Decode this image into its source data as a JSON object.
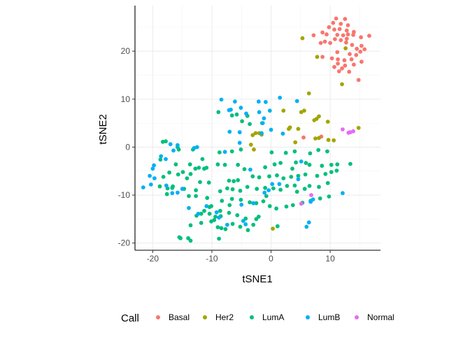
{
  "chart_data": {
    "type": "scatter",
    "xlabel": "tSNE1",
    "ylabel": "tSNE2",
    "xlim": [
      -23,
      18.5
    ],
    "ylim": [
      -21.5,
      29.5
    ],
    "x_ticks": [
      -20,
      -10,
      0,
      10
    ],
    "y_ticks": [
      -20,
      -10,
      0,
      10,
      20
    ],
    "grid": true,
    "legend": {
      "title": "Call",
      "position": "bottom"
    },
    "series": [
      {
        "name": "Basal",
        "color": "#F8766D",
        "points": [
          [
            11.0,
            26.8
          ],
          [
            12.5,
            26.7
          ],
          [
            10.5,
            25.9
          ],
          [
            11.8,
            25.7
          ],
          [
            13.0,
            25.4
          ],
          [
            9.8,
            25.0
          ],
          [
            10.7,
            24.5
          ],
          [
            11.6,
            24.6
          ],
          [
            12.8,
            24.3
          ],
          [
            14.0,
            24.0
          ],
          [
            8.7,
            23.9
          ],
          [
            9.4,
            23.5
          ],
          [
            11.2,
            23.4
          ],
          [
            12.2,
            23.3
          ],
          [
            13.0,
            23.5
          ],
          [
            13.9,
            23.4
          ],
          [
            15.2,
            22.9
          ],
          [
            16.6,
            23.2
          ],
          [
            7.2,
            23.3
          ],
          [
            10.8,
            22.5
          ],
          [
            11.8,
            22.3
          ],
          [
            12.8,
            22.6
          ],
          [
            9.1,
            22.0
          ],
          [
            8.4,
            21.7
          ],
          [
            10.0,
            21.7
          ],
          [
            12.7,
            21.8
          ],
          [
            13.7,
            21.3
          ],
          [
            15.3,
            21.1
          ],
          [
            15.8,
            20.4
          ],
          [
            14.5,
            20.5
          ],
          [
            15.1,
            19.9
          ],
          [
            11.2,
            19.8
          ],
          [
            13.3,
            19.4
          ],
          [
            14.4,
            19.2
          ],
          [
            8.7,
            18.8
          ],
          [
            10.3,
            18.5
          ],
          [
            11.3,
            18.3
          ],
          [
            12.4,
            18.1
          ],
          [
            13.6,
            18.3
          ],
          [
            15.3,
            17.8
          ],
          [
            11.3,
            17.4
          ],
          [
            12.5,
            17.0
          ],
          [
            14.0,
            17.2
          ],
          [
            10.7,
            16.7
          ],
          [
            12.0,
            16.4
          ],
          [
            11.5,
            15.8
          ],
          [
            13.2,
            15.7
          ],
          [
            14.8,
            14.0
          ],
          [
            5.5,
            2.0
          ],
          [
            8.5,
            2.2
          ]
        ]
      },
      {
        "name": "Her2",
        "color": "#A3A500",
        "points": [
          [
            5.3,
            22.7
          ],
          [
            12.6,
            20.6
          ],
          [
            7.8,
            18.8
          ],
          [
            12.0,
            13.1
          ],
          [
            6.4,
            11.2
          ],
          [
            5.1,
            7.3
          ],
          [
            2.1,
            7.6
          ],
          [
            5.6,
            7.6
          ],
          [
            8.1,
            6.4
          ],
          [
            7.7,
            5.9
          ],
          [
            7.3,
            5.6
          ],
          [
            9.6,
            5.3
          ],
          [
            3.0,
            3.8
          ],
          [
            3.2,
            4.1
          ],
          [
            4.6,
            3.8
          ],
          [
            -3.1,
            2.5
          ],
          [
            -2.0,
            2.9
          ],
          [
            -1.6,
            2.6
          ],
          [
            -2.6,
            2.9
          ],
          [
            4.1,
            1.0
          ],
          [
            7.5,
            1.8
          ],
          [
            8.1,
            1.9
          ],
          [
            9.7,
            1.5
          ],
          [
            10.6,
            1.4
          ],
          [
            14.8,
            4.0
          ],
          [
            -3.4,
            0.5
          ],
          [
            -2.9,
            -0.5
          ],
          [
            0.3,
            -17.0
          ]
        ]
      },
      {
        "name": "LumA",
        "color": "#00BF7D",
        "points": [
          [
            -18.3,
            1.1
          ],
          [
            -17.8,
            1.2
          ],
          [
            -15.8,
            0.0
          ],
          [
            -15.6,
            -0.5
          ],
          [
            -13.2,
            -0.5
          ],
          [
            -18.7,
            -2.6
          ],
          [
            -16.1,
            -3.6
          ],
          [
            -13.7,
            -3.6
          ],
          [
            -12.2,
            -4.3
          ],
          [
            -12.8,
            -4.5
          ],
          [
            -17.2,
            -5.3
          ],
          [
            -15.7,
            -5.7
          ],
          [
            -14.9,
            -5.2
          ],
          [
            -13.6,
            -5.6
          ],
          [
            -11.3,
            -4.5
          ],
          [
            -10.9,
            -4.3
          ],
          [
            -18.2,
            -6.2
          ],
          [
            -14.2,
            -6.5
          ],
          [
            -12.0,
            -7.3
          ],
          [
            -18.8,
            -8.2
          ],
          [
            -17.5,
            -8.6
          ],
          [
            -16.7,
            -8.5
          ],
          [
            -14.7,
            -8.7
          ],
          [
            -12.7,
            -9.0
          ],
          [
            -17.6,
            -9.8
          ],
          [
            -13.9,
            -10.2
          ],
          [
            -12.7,
            -10.2
          ],
          [
            -10.8,
            -10.6
          ],
          [
            -10.1,
            -12.3
          ],
          [
            -11.3,
            -13.3
          ],
          [
            -10.4,
            -13.9
          ],
          [
            -11.8,
            -13.9
          ],
          [
            -12.6,
            -14.3
          ],
          [
            -9.4,
            -14.5
          ],
          [
            -8.5,
            -14.4
          ],
          [
            -9.6,
            -15.2
          ],
          [
            -10.1,
            -15.5
          ],
          [
            -11.8,
            -15.8
          ],
          [
            -13.6,
            -16.3
          ],
          [
            -9.0,
            -16.7
          ],
          [
            -8.4,
            -16.9
          ],
          [
            -15.5,
            -18.8
          ],
          [
            -15.3,
            -19.0
          ],
          [
            -14.0,
            -19.0
          ],
          [
            -13.6,
            -19.5
          ],
          [
            -8.8,
            -19.1
          ],
          [
            -7.7,
            -17.1
          ],
          [
            -6.5,
            -16.0
          ],
          [
            -5.2,
            -16.6
          ],
          [
            -3.9,
            -17.3
          ],
          [
            -3.0,
            -16.2
          ],
          [
            -2.5,
            -15.0
          ],
          [
            -4.3,
            -14.9
          ],
          [
            -5.7,
            -14.2
          ],
          [
            -7.1,
            -13.7
          ],
          [
            -8.6,
            -13.3
          ],
          [
            -10.4,
            -12.5
          ],
          [
            -8.3,
            -11.2
          ],
          [
            -6.6,
            -10.8
          ],
          [
            -5.1,
            -11.0
          ],
          [
            -3.6,
            -11.5
          ],
          [
            -2.5,
            -11.7
          ],
          [
            -1.3,
            -11.3
          ],
          [
            -0.2,
            -12.3
          ],
          [
            0.9,
            -12.8
          ],
          [
            2.6,
            -12.4
          ],
          [
            3.7,
            -12.1
          ],
          [
            5.3,
            -11.6
          ],
          [
            6.7,
            -11.2
          ],
          [
            8.3,
            -10.7
          ],
          [
            9.8,
            -10.3
          ],
          [
            -8.6,
            -9.2
          ],
          [
            -7.4,
            -8.6
          ],
          [
            -6.5,
            -8.8
          ],
          [
            -5.2,
            -9.1
          ],
          [
            -4.0,
            -8.3
          ],
          [
            -2.4,
            -8.7
          ],
          [
            -1.0,
            -8.5
          ],
          [
            0.4,
            -8.6
          ],
          [
            1.6,
            -8.9
          ],
          [
            2.7,
            -8.1
          ],
          [
            4.0,
            -8.0
          ],
          [
            5.7,
            -8.7
          ],
          [
            6.5,
            -8.1
          ],
          [
            8.1,
            -8.3
          ],
          [
            9.6,
            -7.5
          ],
          [
            -7.1,
            -7.0
          ],
          [
            -5.6,
            -6.9
          ],
          [
            -3.1,
            -6.1
          ],
          [
            -2.0,
            -6.3
          ],
          [
            -0.3,
            -6.1
          ],
          [
            1.0,
            -5.9
          ],
          [
            2.1,
            -6.5
          ],
          [
            3.4,
            -6.2
          ],
          [
            4.6,
            -6.0
          ],
          [
            5.8,
            -5.7
          ],
          [
            7.8,
            -6.0
          ],
          [
            9.2,
            -5.6
          ],
          [
            10.2,
            -5.2
          ],
          [
            11.1,
            -4.9
          ],
          [
            -9.0,
            -3.6
          ],
          [
            -7.8,
            -3.7
          ],
          [
            -5.6,
            -3.7
          ],
          [
            -4.5,
            -4.6
          ],
          [
            -1.0,
            -4.2
          ],
          [
            0.6,
            -3.6
          ],
          [
            1.6,
            -3.3
          ],
          [
            4.2,
            -3.2
          ],
          [
            6.5,
            -3.7
          ],
          [
            8.6,
            -3.9
          ],
          [
            10.2,
            -3.7
          ],
          [
            11.2,
            -3.6
          ],
          [
            13.4,
            -3.5
          ],
          [
            -8.7,
            -1.1
          ],
          [
            -6.6,
            -0.9
          ],
          [
            -5.1,
            -0.5
          ],
          [
            0.1,
            -1.1
          ],
          [
            2.5,
            -1.2
          ],
          [
            4.0,
            -0.9
          ],
          [
            6.6,
            -1.3
          ],
          [
            8.0,
            -0.6
          ],
          [
            9.5,
            -0.9
          ],
          [
            -3.6,
            4.8
          ],
          [
            -4.9,
            5.4
          ],
          [
            -1.5,
            5.0
          ],
          [
            -8.9,
            7.3
          ],
          [
            -6.6,
            6.6
          ],
          [
            -5.8,
            6.8
          ],
          [
            -4.0,
            6.5
          ],
          [
            1.1,
            -16.5
          ],
          [
            -2.1,
            -14.5
          ],
          [
            -7.0,
            -12.1
          ],
          [
            -0.8,
            -10.2
          ],
          [
            4.4,
            -9.3
          ],
          [
            -11.6,
            -2.5
          ],
          [
            3.6,
            -4.5
          ],
          [
            5.9,
            -3.3
          ],
          [
            -16.6,
            -8.2
          ],
          [
            -10.5,
            -7.4
          ],
          [
            -6.3,
            -7.1
          ]
        ]
      },
      {
        "name": "LumB",
        "color": "#00B0F6",
        "points": [
          [
            -8.4,
            9.9
          ],
          [
            -6.1,
            9.5
          ],
          [
            -2.1,
            9.5
          ],
          [
            -0.9,
            9.4
          ],
          [
            1.5,
            10.3
          ],
          [
            -5.1,
            8.2
          ],
          [
            -7.1,
            7.7
          ],
          [
            -6.8,
            7.8
          ],
          [
            -4.2,
            7.0
          ],
          [
            -2.0,
            7.3
          ],
          [
            -0.2,
            7.6
          ],
          [
            4.4,
            9.6
          ],
          [
            -1.2,
            6.0
          ],
          [
            -1.4,
            5.0
          ],
          [
            0.0,
            3.6
          ],
          [
            -7.0,
            3.2
          ],
          [
            -5.3,
            3.1
          ],
          [
            -1.6,
            2.9
          ],
          [
            -5.3,
            0.9
          ],
          [
            -17.0,
            0.6
          ],
          [
            -15.8,
            0.4
          ],
          [
            -16.5,
            -0.7
          ],
          [
            -12.5,
            0.0
          ],
          [
            -13.0,
            -0.2
          ],
          [
            -7.8,
            -1.0
          ],
          [
            -20.0,
            -4.5
          ],
          [
            -19.8,
            -3.8
          ],
          [
            -17.8,
            -2.5
          ],
          [
            -19.7,
            -6.5
          ],
          [
            -20.5,
            -6.0
          ],
          [
            -17.7,
            -8.0
          ],
          [
            -20.3,
            -7.8
          ],
          [
            -21.6,
            -8.4
          ],
          [
            -16.7,
            -9.6
          ],
          [
            -15.8,
            -9.5
          ],
          [
            -10.9,
            -12.3
          ],
          [
            -13.9,
            -12.7
          ],
          [
            -12.3,
            -13.9
          ],
          [
            -9.2,
            -13.6
          ],
          [
            -8.8,
            -14.7
          ],
          [
            -7.4,
            -16.2
          ],
          [
            -4.7,
            -15.4
          ],
          [
            -4.3,
            -16.1
          ],
          [
            -3.0,
            -11.7
          ],
          [
            -5.0,
            -12.0
          ],
          [
            -1.1,
            -9.5
          ],
          [
            -0.4,
            -9.0
          ],
          [
            0.2,
            -7.7
          ],
          [
            1.4,
            -7.7
          ],
          [
            4.6,
            -6.7
          ],
          [
            6.0,
            -16.6
          ],
          [
            6.4,
            -15.7
          ],
          [
            6.7,
            -11.4
          ],
          [
            12.1,
            -9.6
          ],
          [
            7.1,
            -10.9
          ],
          [
            -18.6,
            -1.9
          ],
          [
            -15.0,
            -8.7
          ],
          [
            2.0,
            2.8
          ],
          [
            -3.5,
            -4.7
          ],
          [
            5.1,
            -3.0
          ]
        ]
      },
      {
        "name": "Normal",
        "color": "#E76BF3",
        "points": [
          [
            12.1,
            3.7
          ],
          [
            13.1,
            3.0
          ],
          [
            13.4,
            3.1
          ],
          [
            13.9,
            3.3
          ],
          [
            5.1,
            -11.8
          ],
          [
            6.8,
            -10.0
          ]
        ]
      }
    ]
  }
}
